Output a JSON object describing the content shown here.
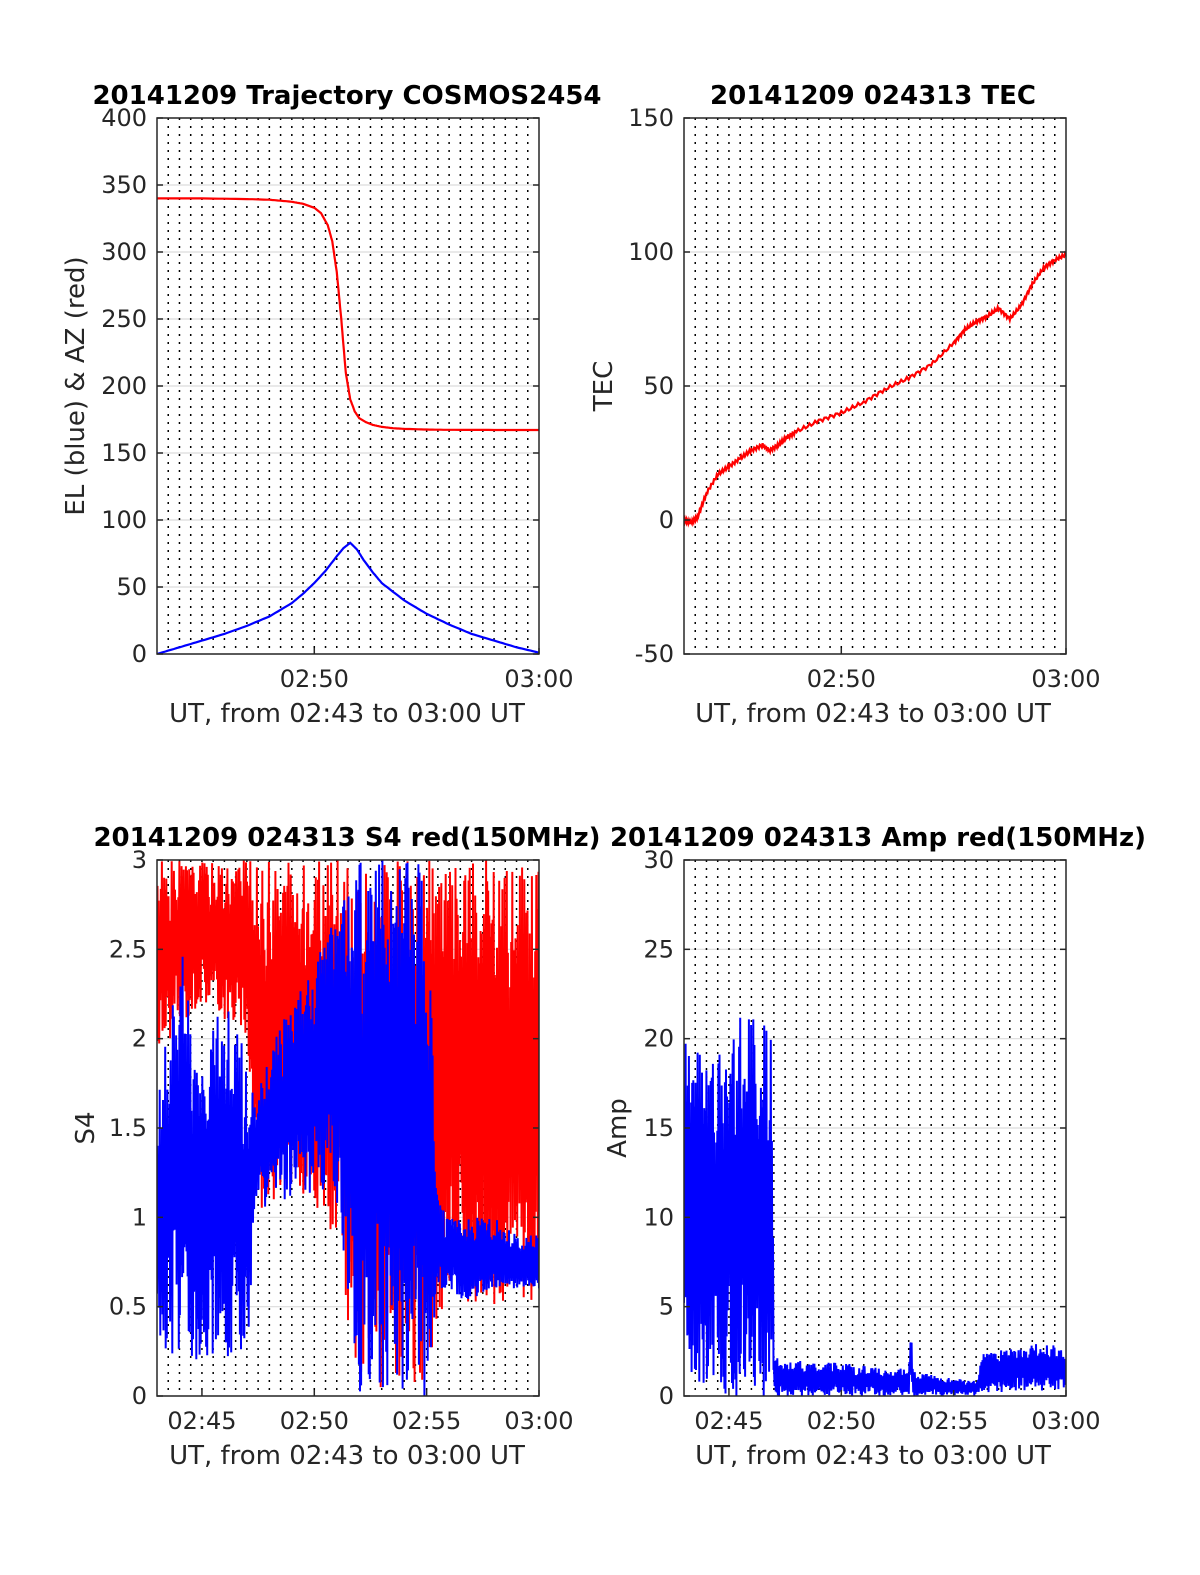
{
  "colors": {
    "red": "#ff0000",
    "blue": "#0000ff",
    "grid": "#dcdcdc",
    "axis": "#262626"
  },
  "chart_data": [
    {
      "type": "line",
      "title": "20141209 Trajectory COSMOS2454",
      "xlabel": "UT, from 02:43 to 03:00 UT",
      "ylabel": "EL (blue) & AZ (red)",
      "xlim_minutes": [
        43.0,
        60.0
      ],
      "ylim": [
        0,
        400
      ],
      "xticks": [
        {
          "value": 50,
          "label": "02:50"
        },
        {
          "value": 60,
          "label": "03:00"
        }
      ],
      "yticks": [
        0,
        50,
        100,
        150,
        200,
        250,
        300,
        350,
        400
      ],
      "grid": true,
      "series": [
        {
          "color": "red",
          "x": [
            43.0,
            45,
            47,
            48,
            49,
            49.5,
            50.0,
            50.3,
            50.6,
            50.8,
            51.0,
            51.2,
            51.4,
            51.6,
            51.8,
            52.0,
            52.3,
            52.6,
            53.0,
            53.5,
            54,
            55,
            56,
            58,
            60
          ],
          "y": [
            340,
            340,
            339.5,
            339,
            337.5,
            336,
            333,
            329,
            320,
            308,
            285,
            250,
            210,
            190,
            181,
            176,
            173,
            171,
            169.5,
            168.5,
            168,
            167.5,
            167.3,
            167.2,
            167.2
          ]
        },
        {
          "color": "blue",
          "x": [
            43.0,
            44,
            45,
            46,
            47,
            48,
            49,
            49.5,
            50.0,
            50.5,
            51.0,
            51.3,
            51.6,
            51.9,
            52.2,
            52.6,
            53.0,
            54,
            55,
            56,
            57,
            58,
            59,
            60
          ],
          "y": [
            0,
            5,
            10,
            15,
            21,
            28,
            38,
            45,
            53,
            62,
            73,
            79,
            83,
            78,
            70,
            61,
            53,
            40,
            30,
            22,
            15,
            10,
            5,
            1
          ]
        }
      ]
    },
    {
      "type": "line",
      "title": "20141209 024313 TEC",
      "xlabel": "UT, from 02:43 to 03:00 UT",
      "ylabel": "TEC",
      "xlim_minutes": [
        43.0,
        60.0
      ],
      "ylim": [
        -50,
        150
      ],
      "xticks": [
        {
          "value": 50,
          "label": "02:50"
        },
        {
          "value": 60,
          "label": "03:00"
        }
      ],
      "yticks": [
        -50,
        0,
        50,
        100,
        150
      ],
      "grid": true,
      "series": [
        {
          "color": "red",
          "x": [
            43.0,
            43.3,
            43.6,
            44.0,
            44.5,
            45.0,
            45.5,
            46.0,
            46.5,
            46.8,
            47.2,
            47.6,
            48.0,
            49.0,
            50.0,
            51.0,
            52.0,
            53.0,
            54.0,
            55.0,
            55.5,
            56.0,
            56.5,
            57.0,
            57.5,
            58.0,
            58.5,
            59.0,
            59.5,
            60.0
          ],
          "y": [
            0,
            -1,
            1,
            10,
            17,
            20,
            23,
            26,
            28,
            26,
            28,
            31,
            33,
            37,
            40,
            44,
            49,
            53,
            58,
            66,
            71,
            74,
            76,
            79,
            75,
            80,
            88,
            94,
            97,
            99
          ]
        }
      ]
    },
    {
      "type": "line",
      "title": "20141209 024313 S4 red(150MHz)",
      "xlabel": "UT, from 02:43 to 03:00 UT",
      "ylabel": "S4",
      "xlim_minutes": [
        43.0,
        60.0
      ],
      "ylim": [
        0,
        3
      ],
      "xticks": [
        {
          "value": 45,
          "label": "02:45"
        },
        {
          "value": 50,
          "label": "02:50"
        },
        {
          "value": 55,
          "label": "02:55"
        },
        {
          "value": 60,
          "label": "03:00"
        }
      ],
      "yticks": [
        0,
        0.5,
        1,
        1.5,
        2,
        2.5,
        3
      ],
      "grid": true,
      "series": [
        {
          "color": "red",
          "x": [
            43.0,
            45.0,
            47.0,
            47.5,
            49.0,
            50.5,
            51.5,
            52.5,
            53.0,
            55.0,
            56.0,
            57.0,
            58.0,
            60.0
          ],
          "y_min": [
            1.9,
            2.2,
            2.0,
            1.0,
            1.2,
            1.0,
            0.3,
            0.0,
            0.0,
            0.0,
            0.6,
            0.5,
            0.5,
            0.5
          ],
          "y_max": [
            3.0,
            3.0,
            3.0,
            3.0,
            3.0,
            3.0,
            3.0,
            3.0,
            3.0,
            3.0,
            3.0,
            3.0,
            3.0,
            3.0
          ]
        },
        {
          "color": "blue",
          "x": [
            43.0,
            44.0,
            45.0,
            46.0,
            47.0,
            47.4,
            48.0,
            49.0,
            50.0,
            50.8,
            51.5,
            52.0,
            53.0,
            54.0,
            55.0,
            55.5,
            56.0,
            57.0,
            58.0,
            59.0,
            60.0
          ],
          "y_min": [
            0.25,
            0.22,
            0.2,
            0.22,
            0.2,
            1.1,
            1.0,
            1.1,
            1.1,
            1.2,
            0.6,
            0.0,
            0.0,
            0.0,
            0.0,
            0.6,
            0.6,
            0.5,
            0.6,
            0.6,
            0.6
          ],
          "y_max": [
            1.6,
            2.6,
            1.8,
            2.3,
            1.9,
            1.6,
            2.0,
            2.2,
            2.4,
            2.7,
            3.0,
            3.0,
            3.0,
            3.0,
            3.0,
            1.1,
            1.0,
            1.0,
            1.0,
            0.9,
            0.9
          ]
        }
      ]
    },
    {
      "type": "line",
      "title": "20141209 024313 Amp red(150MHz)",
      "xlabel": "UT, from 02:43 to 03:00 UT",
      "ylabel": "Amp",
      "xlim_minutes": [
        43.0,
        60.0
      ],
      "ylim": [
        0,
        30
      ],
      "xticks": [
        {
          "value": 45,
          "label": "02:45"
        },
        {
          "value": 50,
          "label": "02:50"
        },
        {
          "value": 55,
          "label": "02:55"
        },
        {
          "value": 60,
          "label": "03:00"
        }
      ],
      "yticks": [
        0,
        5,
        10,
        15,
        20,
        25,
        30
      ],
      "grid": true,
      "series": [
        {
          "color": "blue",
          "x": [
            43.0,
            43.5,
            44.0,
            44.5,
            45.0,
            45.5,
            46.0,
            46.5,
            46.9,
            47.0,
            48.0,
            49.0,
            50.0,
            51.0,
            52.0,
            53.0,
            53.1,
            53.2,
            54.0,
            55.0,
            56.0,
            56.3,
            57.0,
            58.0,
            59.0,
            60.0
          ],
          "y_min": [
            0,
            0,
            0,
            0,
            0,
            0,
            0,
            0,
            0,
            0,
            0,
            0,
            0,
            0,
            0,
            0,
            0,
            0,
            0,
            0,
            0,
            0,
            0.2,
            0.3,
            0.3,
            0.3
          ],
          "y_max": [
            20.5,
            19.5,
            20,
            19,
            21,
            22,
            21.5,
            21,
            20,
            2.3,
            2.0,
            1.9,
            1.9,
            1.7,
            1.5,
            1.6,
            5.0,
            1.4,
            1.2,
            1.0,
            0.9,
            2.5,
            2.6,
            2.7,
            3.2,
            2.5
          ]
        }
      ]
    }
  ]
}
